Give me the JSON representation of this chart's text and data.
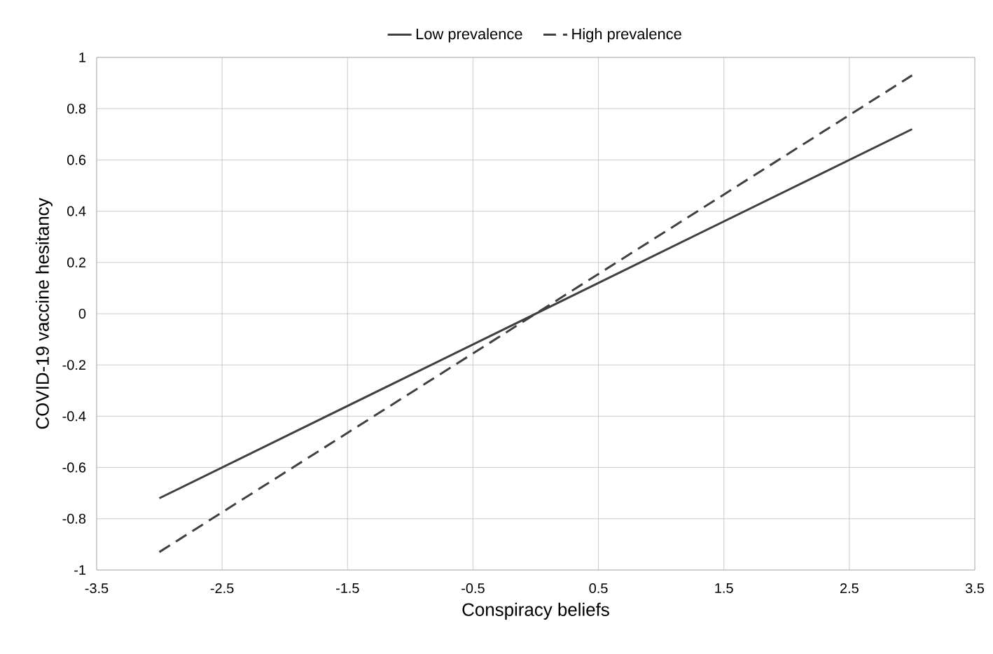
{
  "chart_data": {
    "type": "line",
    "xlabel": "Conspiracy beliefs",
    "ylabel": "COVID-19 vaccine hesitancy",
    "xlim": [
      -3.5,
      3.5
    ],
    "xticks": [
      -3.5,
      -2.5,
      -1.5,
      -0.5,
      0.5,
      1.5,
      2.5,
      3.5
    ],
    "ylim": [
      -1,
      1
    ],
    "yticks": [
      -1,
      -0.8,
      -0.6,
      -0.4,
      -0.2,
      0,
      0.2,
      0.4,
      0.6,
      0.8,
      1
    ],
    "grid": true,
    "x": [
      -3,
      3
    ],
    "legend": "top",
    "marker": "none",
    "series": [
      {
        "name": "Low prevalence",
        "color": "#404040",
        "values": [
          -0.72,
          0.72
        ],
        "line_style": "solid"
      },
      {
        "name": "High prevalence",
        "color": "#404040",
        "values": [
          -0.93,
          0.93
        ],
        "line_style": "dashed"
      }
    ]
  }
}
